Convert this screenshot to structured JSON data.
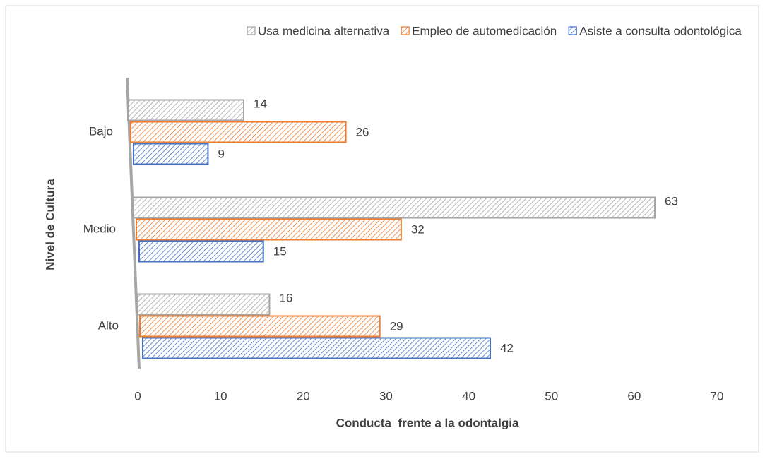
{
  "chart_data": {
    "type": "hbar",
    "categories": [
      "Bajo",
      "Medio",
      "Alto"
    ],
    "series": [
      {
        "name": "Usa medicina alternativa",
        "color": "#a5a5a5",
        "values": [
          14,
          63,
          16
        ]
      },
      {
        "name": "Empleo de automedicación",
        "color": "#ed7d31",
        "values": [
          26,
          32,
          29
        ]
      },
      {
        "name": "Asiste a consulta odontológica",
        "color": "#4472c4",
        "values": [
          9,
          15,
          42
        ]
      }
    ],
    "xlabel": "Conducta  frente a la odontalgia",
    "ylabel": "Nivel de Cultura",
    "xlim": [
      0,
      70
    ],
    "xticks": [
      0,
      10,
      20,
      30,
      40,
      50,
      60,
      70
    ],
    "legend": "top",
    "grid": false
  }
}
